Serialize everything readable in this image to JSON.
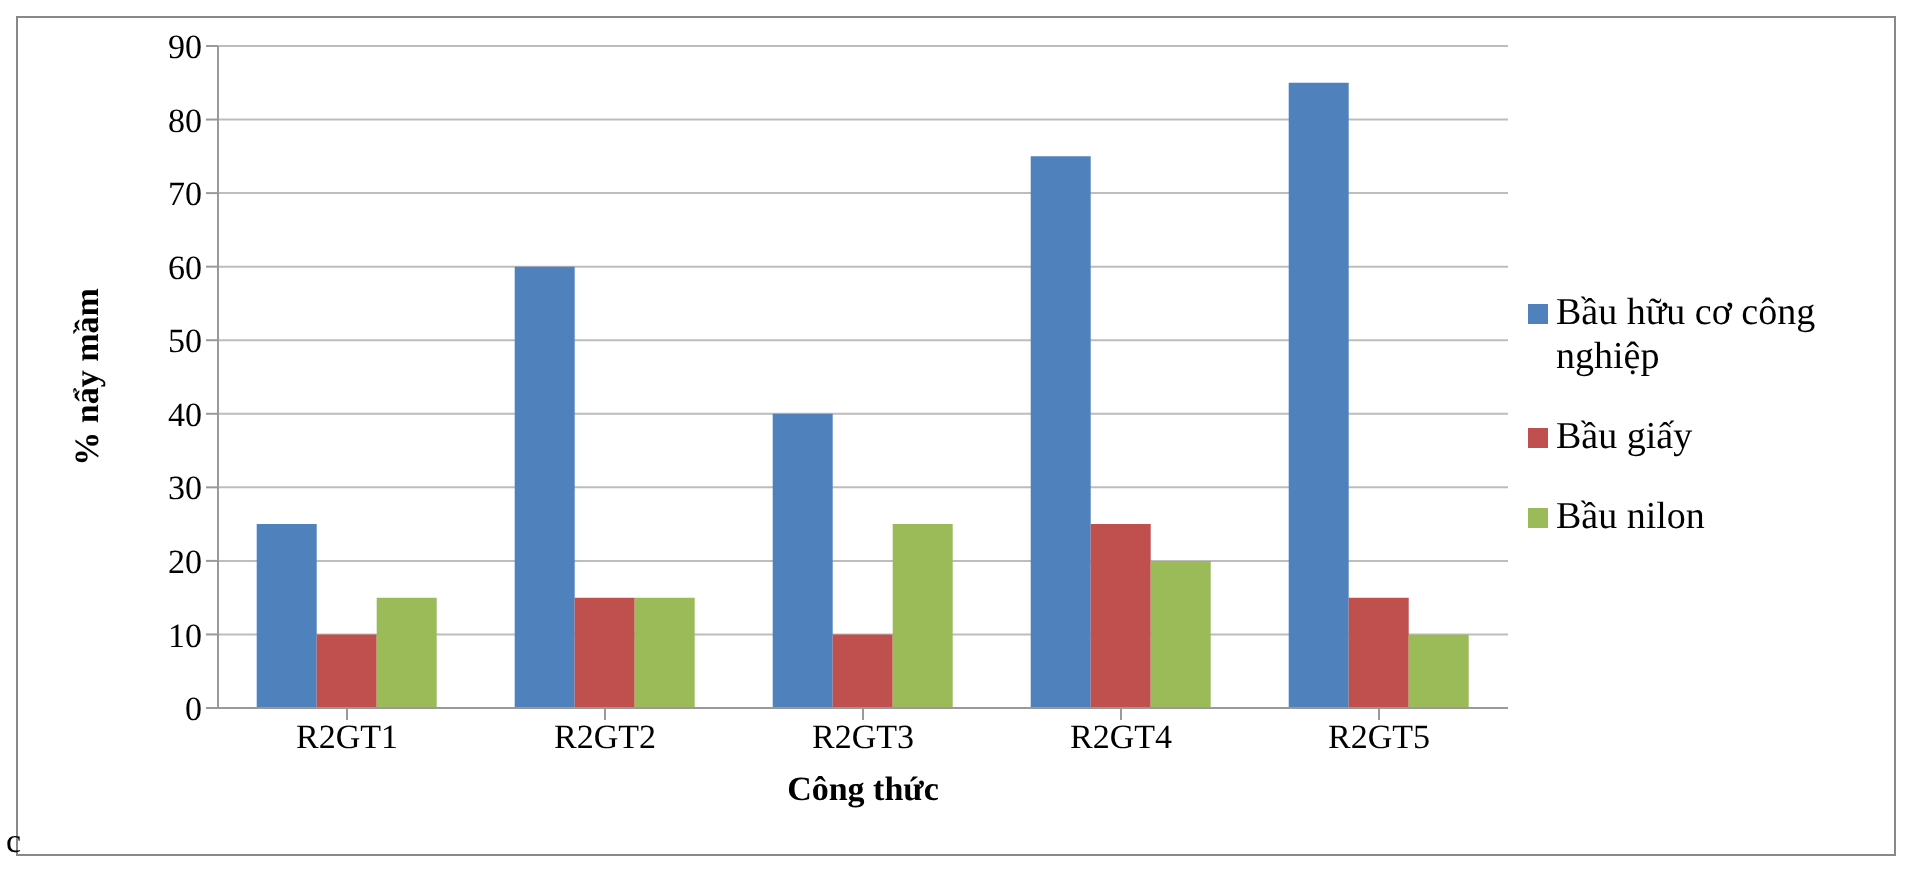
{
  "chart_data": {
    "type": "bar",
    "xlabel": "Công thức",
    "ylabel": "% nẩy mầm",
    "categories": [
      "R2GT1",
      "R2GT2",
      "R2GT3",
      "R2GT4",
      "R2GT5"
    ],
    "series": [
      {
        "name": "Bầu hữu cơ công nghiệp",
        "color": "#4f81bd",
        "values": [
          25,
          60,
          40,
          75,
          85
        ]
      },
      {
        "name": "Bầu giấy",
        "color": "#c0504d",
        "values": [
          10,
          15,
          10,
          25,
          15
        ]
      },
      {
        "name": "Bầu nilon",
        "color": "#9bbb59",
        "values": [
          15,
          15,
          25,
          20,
          10
        ]
      }
    ],
    "ylim": [
      0,
      90
    ],
    "yticks": [
      0,
      10,
      20,
      30,
      40,
      50,
      60,
      70,
      80,
      90
    ],
    "grid": "y",
    "legend": "right",
    "annotations": [
      "c"
    ]
  }
}
